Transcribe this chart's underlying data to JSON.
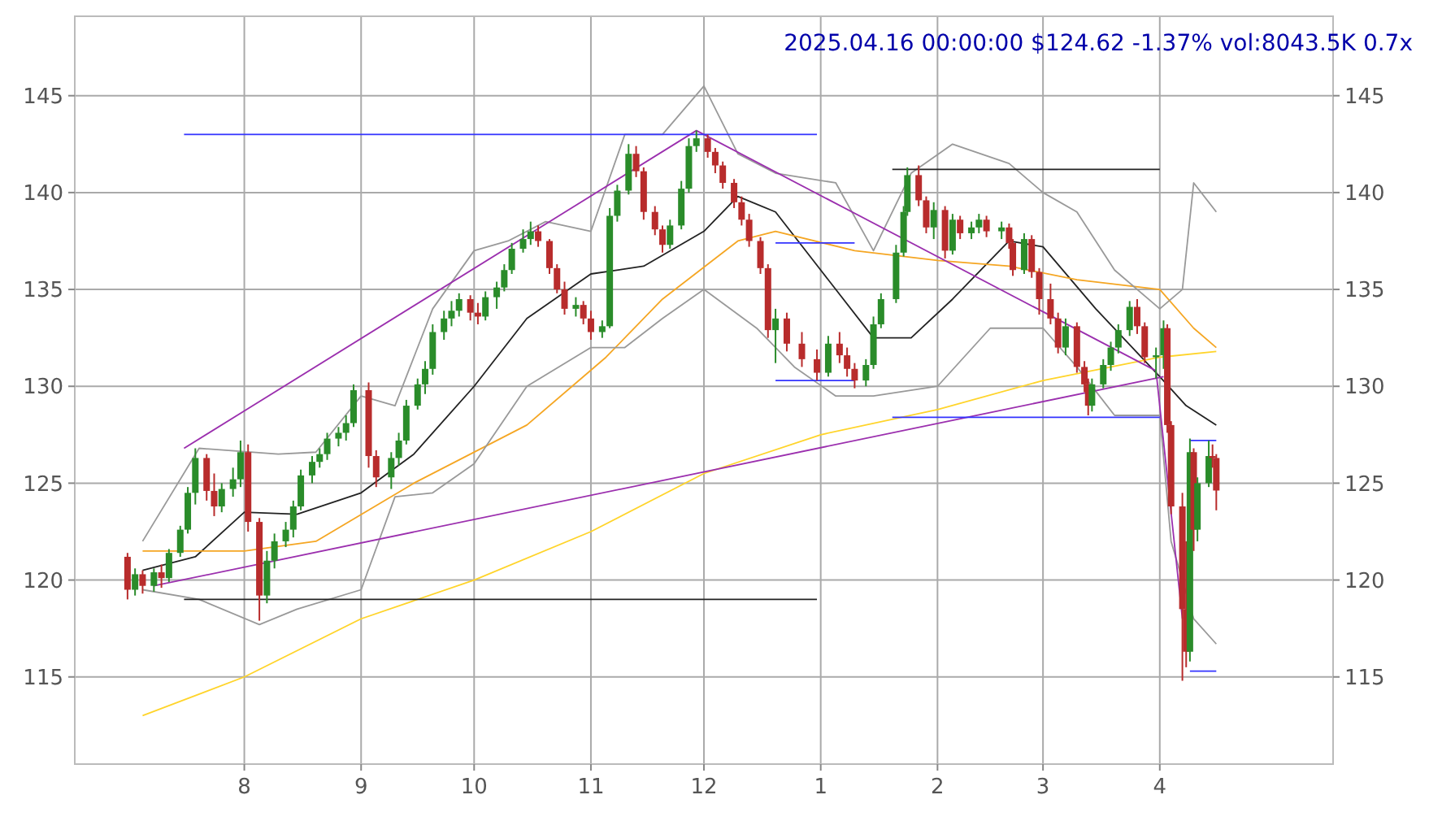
{
  "chart_data": {
    "type": "candlestick",
    "title": "2025.04.16 00:00:00 $124.62 -1.37% vol:8043.5K 0.7x",
    "x": [
      "2024-07-01",
      "2024-07-03",
      "2024-07-05",
      "2024-07-08",
      "2024-07-10",
      "2024-07-12",
      "2024-07-15",
      "2024-07-17",
      "2024-07-19",
      "2024-07-22",
      "2024-07-24",
      "2024-07-26",
      "2024-07-29",
      "2024-07-31",
      "2024-08-02",
      "2024-08-05",
      "2024-08-07",
      "2024-08-09",
      "2024-08-12",
      "2024-08-14",
      "2024-08-16",
      "2024-08-19",
      "2024-08-21",
      "2024-08-23",
      "2024-08-26",
      "2024-08-28",
      "2024-08-30",
      "2024-09-03",
      "2024-09-05",
      "2024-09-09",
      "2024-09-11",
      "2024-09-13",
      "2024-09-16",
      "2024-09-18",
      "2024-09-20",
      "2024-09-23",
      "2024-09-25",
      "2024-09-27",
      "2024-09-30",
      "2024-10-02",
      "2024-10-04",
      "2024-10-07",
      "2024-10-09",
      "2024-10-11",
      "2024-10-14",
      "2024-10-16",
      "2024-10-18",
      "2024-10-21",
      "2024-10-23",
      "2024-10-25",
      "2024-10-28",
      "2024-10-30",
      "2024-11-01",
      "2024-11-04",
      "2024-11-06",
      "2024-11-08",
      "2024-11-11",
      "2024-11-13",
      "2024-11-15",
      "2024-11-18",
      "2024-11-20",
      "2024-11-22",
      "2024-11-25",
      "2024-11-27",
      "2024-11-29",
      "2024-12-02",
      "2024-12-04",
      "2024-12-06",
      "2024-12-09",
      "2024-12-11",
      "2024-12-13",
      "2024-12-16",
      "2024-12-18",
      "2024-12-20",
      "2024-12-23",
      "2024-12-27",
      "2024-12-31",
      "2025-01-03",
      "2025-01-06",
      "2025-01-08",
      "2025-01-10",
      "2025-01-13",
      "2025-01-15",
      "2025-01-17",
      "2025-01-21",
      "2025-01-23",
      "2025-01-24",
      "2025-01-27",
      "2025-01-29",
      "2025-01-31",
      "2025-02-03",
      "2025-02-05",
      "2025-02-07",
      "2025-02-10",
      "2025-02-12",
      "2025-02-14",
      "2025-02-18",
      "2025-02-20",
      "2025-02-21",
      "2025-02-24",
      "2025-02-26",
      "2025-02-28",
      "2025-03-03",
      "2025-03-05",
      "2025-03-07",
      "2025-03-10",
      "2025-03-12",
      "2025-03-13",
      "2025-03-14",
      "2025-03-17",
      "2025-03-19",
      "2025-03-21",
      "2025-03-24",
      "2025-03-26",
      "2025-03-28",
      "2025-03-31",
      "2025-04-02",
      "2025-04-03",
      "2025-04-04",
      "2025-04-07",
      "2025-04-08",
      "2025-04-09",
      "2025-04-10",
      "2025-04-11",
      "2025-04-14",
      "2025-04-15",
      "2025-04-16"
    ],
    "ohlc": [
      [
        121.2,
        121.4,
        119.0,
        119.5
      ],
      [
        119.5,
        120.6,
        119.2,
        120.3
      ],
      [
        120.3,
        120.5,
        119.3,
        119.7
      ],
      [
        119.7,
        120.6,
        119.4,
        120.4
      ],
      [
        120.4,
        120.8,
        119.6,
        120.1
      ],
      [
        120.1,
        121.6,
        119.9,
        121.4
      ],
      [
        121.4,
        122.8,
        121.2,
        122.6
      ],
      [
        122.6,
        124.8,
        122.4,
        124.5
      ],
      [
        124.5,
        126.8,
        123.9,
        126.3
      ],
      [
        126.3,
        126.5,
        124.1,
        124.6
      ],
      [
        124.6,
        125.5,
        123.3,
        123.8
      ],
      [
        123.8,
        125.0,
        123.5,
        124.7
      ],
      [
        124.7,
        125.8,
        124.3,
        125.2
      ],
      [
        125.2,
        127.2,
        124.8,
        126.6
      ],
      [
        126.6,
        127.0,
        122.5,
        123.0
      ],
      [
        123.0,
        123.2,
        117.9,
        119.2
      ],
      [
        119.2,
        121.5,
        118.8,
        121.0
      ],
      [
        121.0,
        122.4,
        120.6,
        122.0
      ],
      [
        122.0,
        123.0,
        121.7,
        122.6
      ],
      [
        122.6,
        124.1,
        122.2,
        123.8
      ],
      [
        123.8,
        125.7,
        123.6,
        125.4
      ],
      [
        125.4,
        126.4,
        125.0,
        126.1
      ],
      [
        126.1,
        126.8,
        125.8,
        126.5
      ],
      [
        126.5,
        127.6,
        126.2,
        127.3
      ],
      [
        127.3,
        127.9,
        126.9,
        127.6
      ],
      [
        127.6,
        128.5,
        127.2,
        128.1
      ],
      [
        128.1,
        130.1,
        127.9,
        129.8
      ],
      [
        129.8,
        130.2,
        125.8,
        126.4
      ],
      [
        126.4,
        126.7,
        124.8,
        125.3
      ],
      [
        125.3,
        126.6,
        124.7,
        126.3
      ],
      [
        126.3,
        127.6,
        125.9,
        127.2
      ],
      [
        127.2,
        129.3,
        127.0,
        129.0
      ],
      [
        129.0,
        130.4,
        128.8,
        130.1
      ],
      [
        130.1,
        131.3,
        129.6,
        130.9
      ],
      [
        130.9,
        133.2,
        130.6,
        132.8
      ],
      [
        132.8,
        133.9,
        132.4,
        133.5
      ],
      [
        133.5,
        134.4,
        133.1,
        133.9
      ],
      [
        133.9,
        134.8,
        133.6,
        134.5
      ],
      [
        134.5,
        134.7,
        133.4,
        133.8
      ],
      [
        133.8,
        134.3,
        133.2,
        133.6
      ],
      [
        133.6,
        134.9,
        133.4,
        134.6
      ],
      [
        134.6,
        135.4,
        134.0,
        135.1
      ],
      [
        135.1,
        136.3,
        134.9,
        136.0
      ],
      [
        136.0,
        137.4,
        135.8,
        137.1
      ],
      [
        137.1,
        138.1,
        136.9,
        137.6
      ],
      [
        137.6,
        138.5,
        137.3,
        138.0
      ],
      [
        138.0,
        138.3,
        137.2,
        137.5
      ],
      [
        137.5,
        137.6,
        135.8,
        136.1
      ],
      [
        136.1,
        136.3,
        134.8,
        135.0
      ],
      [
        135.0,
        135.4,
        133.7,
        134.0
      ],
      [
        134.0,
        134.6,
        133.6,
        134.2
      ],
      [
        134.2,
        134.4,
        133.2,
        133.5
      ],
      [
        133.5,
        133.9,
        132.4,
        132.8
      ],
      [
        132.8,
        133.4,
        132.5,
        133.1
      ],
      [
        133.1,
        139.2,
        133.0,
        138.8
      ],
      [
        138.8,
        140.4,
        138.5,
        140.1
      ],
      [
        140.1,
        142.5,
        139.9,
        142.0
      ],
      [
        142.0,
        142.4,
        140.8,
        141.1
      ],
      [
        141.1,
        141.3,
        138.6,
        139.0
      ],
      [
        139.0,
        139.3,
        137.8,
        138.1
      ],
      [
        138.1,
        138.3,
        136.9,
        137.3
      ],
      [
        137.3,
        138.6,
        137.1,
        138.3
      ],
      [
        138.3,
        140.6,
        138.1,
        140.2
      ],
      [
        140.2,
        142.8,
        140.0,
        142.4
      ],
      [
        142.4,
        143.2,
        142.1,
        142.8
      ],
      [
        142.8,
        143.0,
        141.8,
        142.1
      ],
      [
        142.1,
        142.3,
        141.0,
        141.4
      ],
      [
        141.4,
        141.6,
        140.2,
        140.5
      ],
      [
        140.5,
        140.7,
        139.2,
        139.5
      ],
      [
        139.5,
        139.8,
        138.3,
        138.6
      ],
      [
        138.6,
        138.9,
        137.2,
        137.5
      ],
      [
        137.5,
        137.7,
        135.8,
        136.1
      ],
      [
        136.1,
        136.3,
        132.5,
        132.9
      ],
      [
        132.9,
        134.0,
        131.2,
        133.5
      ],
      [
        133.5,
        133.8,
        131.8,
        132.2
      ],
      [
        132.2,
        132.8,
        131.0,
        131.4
      ],
      [
        131.4,
        131.9,
        130.3,
        130.7
      ],
      [
        130.7,
        132.6,
        130.5,
        132.2
      ],
      [
        132.2,
        132.8,
        131.2,
        131.6
      ],
      [
        131.6,
        132.0,
        130.5,
        130.9
      ],
      [
        130.9,
        131.2,
        129.9,
        130.3
      ],
      [
        130.3,
        131.4,
        130.0,
        131.1
      ],
      [
        131.1,
        133.6,
        130.9,
        133.2
      ],
      [
        133.2,
        134.8,
        133.0,
        134.5
      ],
      [
        134.5,
        137.3,
        134.3,
        136.9
      ],
      [
        136.9,
        139.3,
        136.7,
        139.0
      ],
      [
        139.0,
        141.3,
        138.8,
        140.9
      ],
      [
        140.9,
        141.4,
        139.3,
        139.6
      ],
      [
        139.6,
        139.8,
        137.9,
        138.2
      ],
      [
        138.2,
        139.5,
        137.6,
        139.1
      ],
      [
        139.1,
        139.3,
        136.6,
        137.0
      ],
      [
        137.0,
        138.9,
        136.8,
        138.6
      ],
      [
        138.6,
        138.8,
        137.6,
        137.9
      ],
      [
        137.9,
        138.5,
        137.6,
        138.2
      ],
      [
        138.2,
        138.9,
        137.9,
        138.6
      ],
      [
        138.6,
        138.8,
        137.7,
        138.0
      ],
      [
        138.0,
        138.5,
        137.6,
        138.2
      ],
      [
        138.2,
        138.4,
        137.1,
        137.4
      ],
      [
        137.4,
        137.6,
        135.7,
        136.0
      ],
      [
        136.0,
        137.9,
        135.8,
        137.6
      ],
      [
        137.6,
        137.8,
        135.6,
        135.9
      ],
      [
        135.9,
        136.1,
        133.7,
        134.5
      ],
      [
        134.5,
        135.3,
        133.2,
        133.5
      ],
      [
        133.5,
        133.8,
        131.7,
        132.0
      ],
      [
        132.0,
        133.5,
        131.6,
        133.1
      ],
      [
        133.1,
        133.3,
        130.7,
        131.0
      ],
      [
        131.0,
        131.3,
        129.7,
        130.1
      ],
      [
        130.1,
        130.4,
        128.5,
        129.0
      ],
      [
        129.0,
        130.4,
        128.7,
        130.1
      ],
      [
        130.1,
        131.4,
        129.9,
        131.1
      ],
      [
        131.1,
        132.3,
        130.8,
        132.0
      ],
      [
        132.0,
        133.2,
        131.7,
        132.9
      ],
      [
        132.9,
        134.4,
        132.6,
        134.1
      ],
      [
        134.1,
        134.5,
        132.7,
        133.1
      ],
      [
        133.1,
        133.3,
        131.2,
        131.5
      ],
      [
        131.5,
        132.0,
        130.4,
        131.6
      ],
      [
        131.6,
        133.4,
        130.9,
        133.0
      ],
      [
        133.0,
        133.2,
        127.6,
        128.0
      ],
      [
        128.0,
        128.2,
        123.4,
        123.8
      ],
      [
        123.8,
        124.5,
        114.8,
        118.5
      ],
      [
        118.5,
        122.0,
        115.5,
        116.3
      ],
      [
        116.3,
        127.3,
        115.8,
        126.6
      ],
      [
        126.6,
        126.8,
        121.5,
        122.6
      ],
      [
        122.6,
        125.3,
        122.0,
        125.0
      ],
      [
        125.0,
        127.2,
        124.8,
        126.4
      ],
      [
        126.4,
        127.0,
        125.8,
        126.3
      ],
      [
        126.3,
        126.5,
        123.6,
        124.62
      ]
    ],
    "series": [
      {
        "type": "line",
        "color": "#222222",
        "x": [
          "2024-07-05",
          "2024-07-19",
          "2024-08-01",
          "2024-08-15",
          "2024-09-01",
          "2024-09-15",
          "2024-10-01",
          "2024-10-15",
          "2024-11-01",
          "2024-11-15",
          "2024-12-01",
          "2024-12-10",
          "2024-12-20",
          "2025-01-01",
          "2025-01-15",
          "2025-01-25",
          "2025-02-05",
          "2025-02-20",
          "2025-03-01",
          "2025-03-15",
          "2025-04-01",
          "2025-04-08",
          "2025-04-16"
        ],
        "values": [
          120.5,
          121.2,
          123.5,
          123.4,
          124.5,
          126.5,
          130,
          133.5,
          135.8,
          136.2,
          138,
          139.8,
          139,
          136,
          132.5,
          132.5,
          134.5,
          137.5,
          137.2,
          134,
          130.5,
          129,
          128
        ]
      },
      {
        "type": "line",
        "color": "#f5a623",
        "x": [
          "2024-07-05",
          "2024-08-01",
          "2024-08-20",
          "2024-09-15",
          "2024-10-15",
          "2024-11-05",
          "2024-11-20",
          "2024-12-10",
          "2024-12-20",
          "2025-01-10",
          "2025-02-01",
          "2025-02-20",
          "2025-03-10",
          "2025-04-01",
          "2025-04-10",
          "2025-04-16"
        ],
        "values": [
          121.5,
          121.5,
          122,
          125,
          128,
          131.5,
          134.5,
          137.5,
          138,
          137,
          136.5,
          136.2,
          135.5,
          135,
          133,
          132
        ]
      },
      {
        "type": "line",
        "color": "#ffd42a",
        "x": [
          "2024-07-05",
          "2024-08-01",
          "2024-09-01",
          "2024-10-01",
          "2024-11-01",
          "2024-12-01",
          "2025-01-01",
          "2025-02-01",
          "2025-03-01",
          "2025-04-01",
          "2025-04-16"
        ],
        "values": [
          113,
          115,
          118,
          120,
          122.5,
          125.5,
          127.5,
          128.8,
          130.3,
          131.5,
          131.8
        ]
      },
      {
        "type": "line",
        "color": "#999999",
        "x": [
          "2024-07-05",
          "2024-07-20",
          "2024-08-10",
          "2024-08-20",
          "2024-09-01",
          "2024-09-10",
          "2024-09-20",
          "2024-10-01",
          "2024-10-10",
          "2024-10-20",
          "2024-11-01",
          "2024-11-10",
          "2024-11-20",
          "2024-12-01",
          "2024-12-10",
          "2024-12-20",
          "2025-01-05",
          "2025-01-15",
          "2025-01-25",
          "2025-02-05",
          "2025-02-20",
          "2025-03-01",
          "2025-03-10",
          "2025-03-20",
          "2025-04-01",
          "2025-04-07",
          "2025-04-10",
          "2025-04-16"
        ],
        "values": [
          122,
          126.8,
          126.5,
          126.6,
          129.5,
          129,
          134,
          137,
          137.5,
          138.5,
          138,
          143,
          143,
          145.5,
          142,
          141,
          140.5,
          137,
          141,
          142.5,
          141.5,
          140,
          139,
          136,
          134,
          135,
          140.5,
          139
        ]
      },
      {
        "type": "line",
        "color": "#999999",
        "x": [
          "2024-07-05",
          "2024-07-20",
          "2024-08-05",
          "2024-08-15",
          "2024-09-01",
          "2024-09-10",
          "2024-09-20",
          "2024-10-01",
          "2024-10-15",
          "2024-11-01",
          "2024-11-10",
          "2024-11-20",
          "2024-12-01",
          "2024-12-15",
          "2024-12-25",
          "2025-01-05",
          "2025-01-15",
          "2025-02-01",
          "2025-02-15",
          "2025-03-01",
          "2025-03-10",
          "2025-03-20",
          "2025-04-01",
          "2025-04-04",
          "2025-04-10",
          "2025-04-16"
        ],
        "values": [
          119.5,
          119,
          117.7,
          118.5,
          119.5,
          124.3,
          124.5,
          126,
          130,
          132,
          132,
          133.5,
          135,
          133,
          131,
          129.5,
          129.5,
          130,
          133,
          133,
          131,
          128.5,
          128.5,
          122,
          118,
          116.7
        ]
      },
      {
        "type": "line",
        "color": "#9b2fae",
        "x": [
          "2024-07-16",
          "2024-11-29",
          "2025-03-31",
          "2025-04-07"
        ],
        "values": [
          126.8,
          143.2,
          130.8,
          118
        ]
      },
      {
        "type": "line",
        "color": "#9b2fae",
        "x": [
          "2024-07-08",
          "2025-04-02"
        ],
        "values": [
          119.7,
          130.5
        ]
      },
      {
        "type": "line",
        "color": "#3333ff",
        "x": [
          "2024-07-16",
          "2024-12-31"
        ],
        "values": [
          143,
          143
        ]
      },
      {
        "type": "line",
        "color": "#222222",
        "x": [
          "2024-07-16",
          "2024-12-31"
        ],
        "values": [
          119,
          119
        ]
      },
      {
        "type": "line",
        "color": "#3333ff",
        "x": [
          "2024-12-20",
          "2025-01-10"
        ],
        "values": [
          137.4,
          137.4
        ]
      },
      {
        "type": "line",
        "color": "#3333ff",
        "x": [
          "2024-12-20",
          "2025-01-10"
        ],
        "values": [
          130.3,
          130.3
        ]
      },
      {
        "type": "line",
        "color": "#222222",
        "x": [
          "2025-01-20",
          "2025-04-01"
        ],
        "values": [
          141.2,
          141.2
        ]
      },
      {
        "type": "line",
        "color": "#3333ff",
        "x": [
          "2025-01-20",
          "2025-04-01"
        ],
        "values": [
          128.4,
          128.4
        ]
      },
      {
        "type": "line",
        "color": "#3333ff",
        "x": [
          "2025-04-09",
          "2025-04-16"
        ],
        "values": [
          127.2,
          127.2
        ]
      },
      {
        "type": "line",
        "color": "#3333ff",
        "x": [
          "2025-04-09",
          "2025-04-16"
        ],
        "values": [
          115.3,
          115.3
        ]
      }
    ],
    "xlim": [
      "2024-06-17",
      "2025-05-17"
    ],
    "xticks": [
      {
        "value": "2024-08-01",
        "label": "8"
      },
      {
        "value": "2024-09-01",
        "label": "9"
      },
      {
        "value": "2024-10-01",
        "label": "10"
      },
      {
        "value": "2024-11-01",
        "label": "11"
      },
      {
        "value": "2024-12-01",
        "label": "12"
      },
      {
        "value": "2025-01-01",
        "label": "1"
      },
      {
        "value": "2025-02-01",
        "label": "2"
      },
      {
        "value": "2025-03-01",
        "label": "3"
      },
      {
        "value": "2025-04-01",
        "label": "4"
      }
    ],
    "ylim": [
      110.5,
      149.1
    ],
    "yticks": [
      115,
      120,
      125,
      130,
      135,
      140,
      145
    ],
    "y2lim": [
      110.5,
      149.1
    ],
    "y2ticks": [
      115,
      120,
      125,
      130,
      135,
      140,
      145
    ],
    "grid": true
  }
}
